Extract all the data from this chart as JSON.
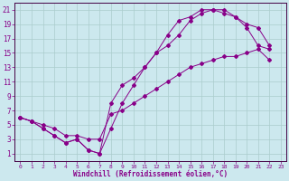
{
  "xlabel": "Windchill (Refroidissement éolien,°C)",
  "bg_color": "#cce8ee",
  "grid_color": "#aacccc",
  "line_color": "#880088",
  "spine_color": "#440044",
  "xlim": [
    -0.5,
    23.5
  ],
  "ylim": [
    0,
    22
  ],
  "xticks": [
    0,
    1,
    2,
    3,
    4,
    5,
    6,
    7,
    8,
    9,
    10,
    11,
    12,
    13,
    14,
    15,
    16,
    17,
    18,
    19,
    20,
    21,
    22,
    23
  ],
  "yticks": [
    1,
    3,
    5,
    7,
    9,
    11,
    13,
    15,
    17,
    19,
    21
  ],
  "line1_x": [
    0,
    1,
    2,
    3,
    4,
    5,
    6,
    7,
    8,
    9,
    10,
    11,
    12,
    13,
    14,
    15,
    16,
    17,
    18,
    19,
    20,
    21,
    22
  ],
  "line1_y": [
    6,
    5.5,
    4.5,
    3.5,
    2.5,
    3.0,
    1.5,
    1.0,
    4.5,
    8.0,
    10.5,
    13.0,
    15.0,
    17.5,
    19.5,
    20.0,
    21.0,
    21.0,
    20.5,
    20.0,
    18.5,
    16.0,
    15.5
  ],
  "line2_x": [
    0,
    1,
    2,
    3,
    4,
    5,
    6,
    7,
    8,
    9,
    10,
    11,
    12,
    13,
    14,
    15,
    16,
    17,
    18,
    19,
    20,
    21,
    22
  ],
  "line2_y": [
    6,
    5.5,
    4.5,
    3.5,
    2.5,
    3.0,
    1.5,
    1.0,
    8.0,
    10.5,
    11.5,
    13.0,
    15.0,
    16.0,
    17.5,
    19.5,
    20.5,
    21.0,
    21.0,
    20.0,
    19.0,
    18.5,
    16.0
  ],
  "line3_x": [
    0,
    1,
    2,
    3,
    4,
    5,
    6,
    7,
    8,
    9,
    10,
    11,
    12,
    13,
    14,
    15,
    16,
    17,
    18,
    19,
    20,
    21,
    22
  ],
  "line3_y": [
    6,
    5.5,
    5.0,
    4.5,
    3.5,
    3.5,
    3.0,
    3.0,
    6.5,
    7.0,
    8.0,
    9.0,
    10.0,
    11.0,
    12.0,
    13.0,
    13.5,
    14.0,
    14.5,
    14.5,
    15.0,
    15.5,
    14.0
  ]
}
